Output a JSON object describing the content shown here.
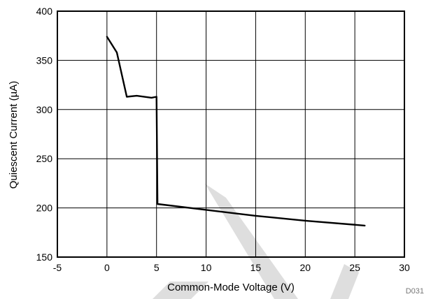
{
  "chart_data": {
    "type": "line",
    "title": "",
    "xlabel": "Common-Mode Voltage (V)",
    "ylabel": "Quiescent Current (µA)",
    "xlim": [
      -5,
      30
    ],
    "ylim": [
      150,
      400
    ],
    "xticks": [
      -5,
      0,
      5,
      10,
      15,
      20,
      25,
      30
    ],
    "yticks": [
      150,
      200,
      250,
      300,
      350,
      400
    ],
    "grid": true,
    "legend": "none",
    "series": [
      {
        "color": "#000000",
        "x": [
          0,
          1,
          2,
          3,
          4.5,
          5,
          5.1,
          10,
          15,
          20,
          26
        ],
        "y": [
          374,
          358,
          313,
          314,
          312,
          313,
          204,
          198,
          192,
          187,
          182
        ]
      }
    ]
  },
  "figure_id": "D031",
  "watermark_color": "#dedede"
}
